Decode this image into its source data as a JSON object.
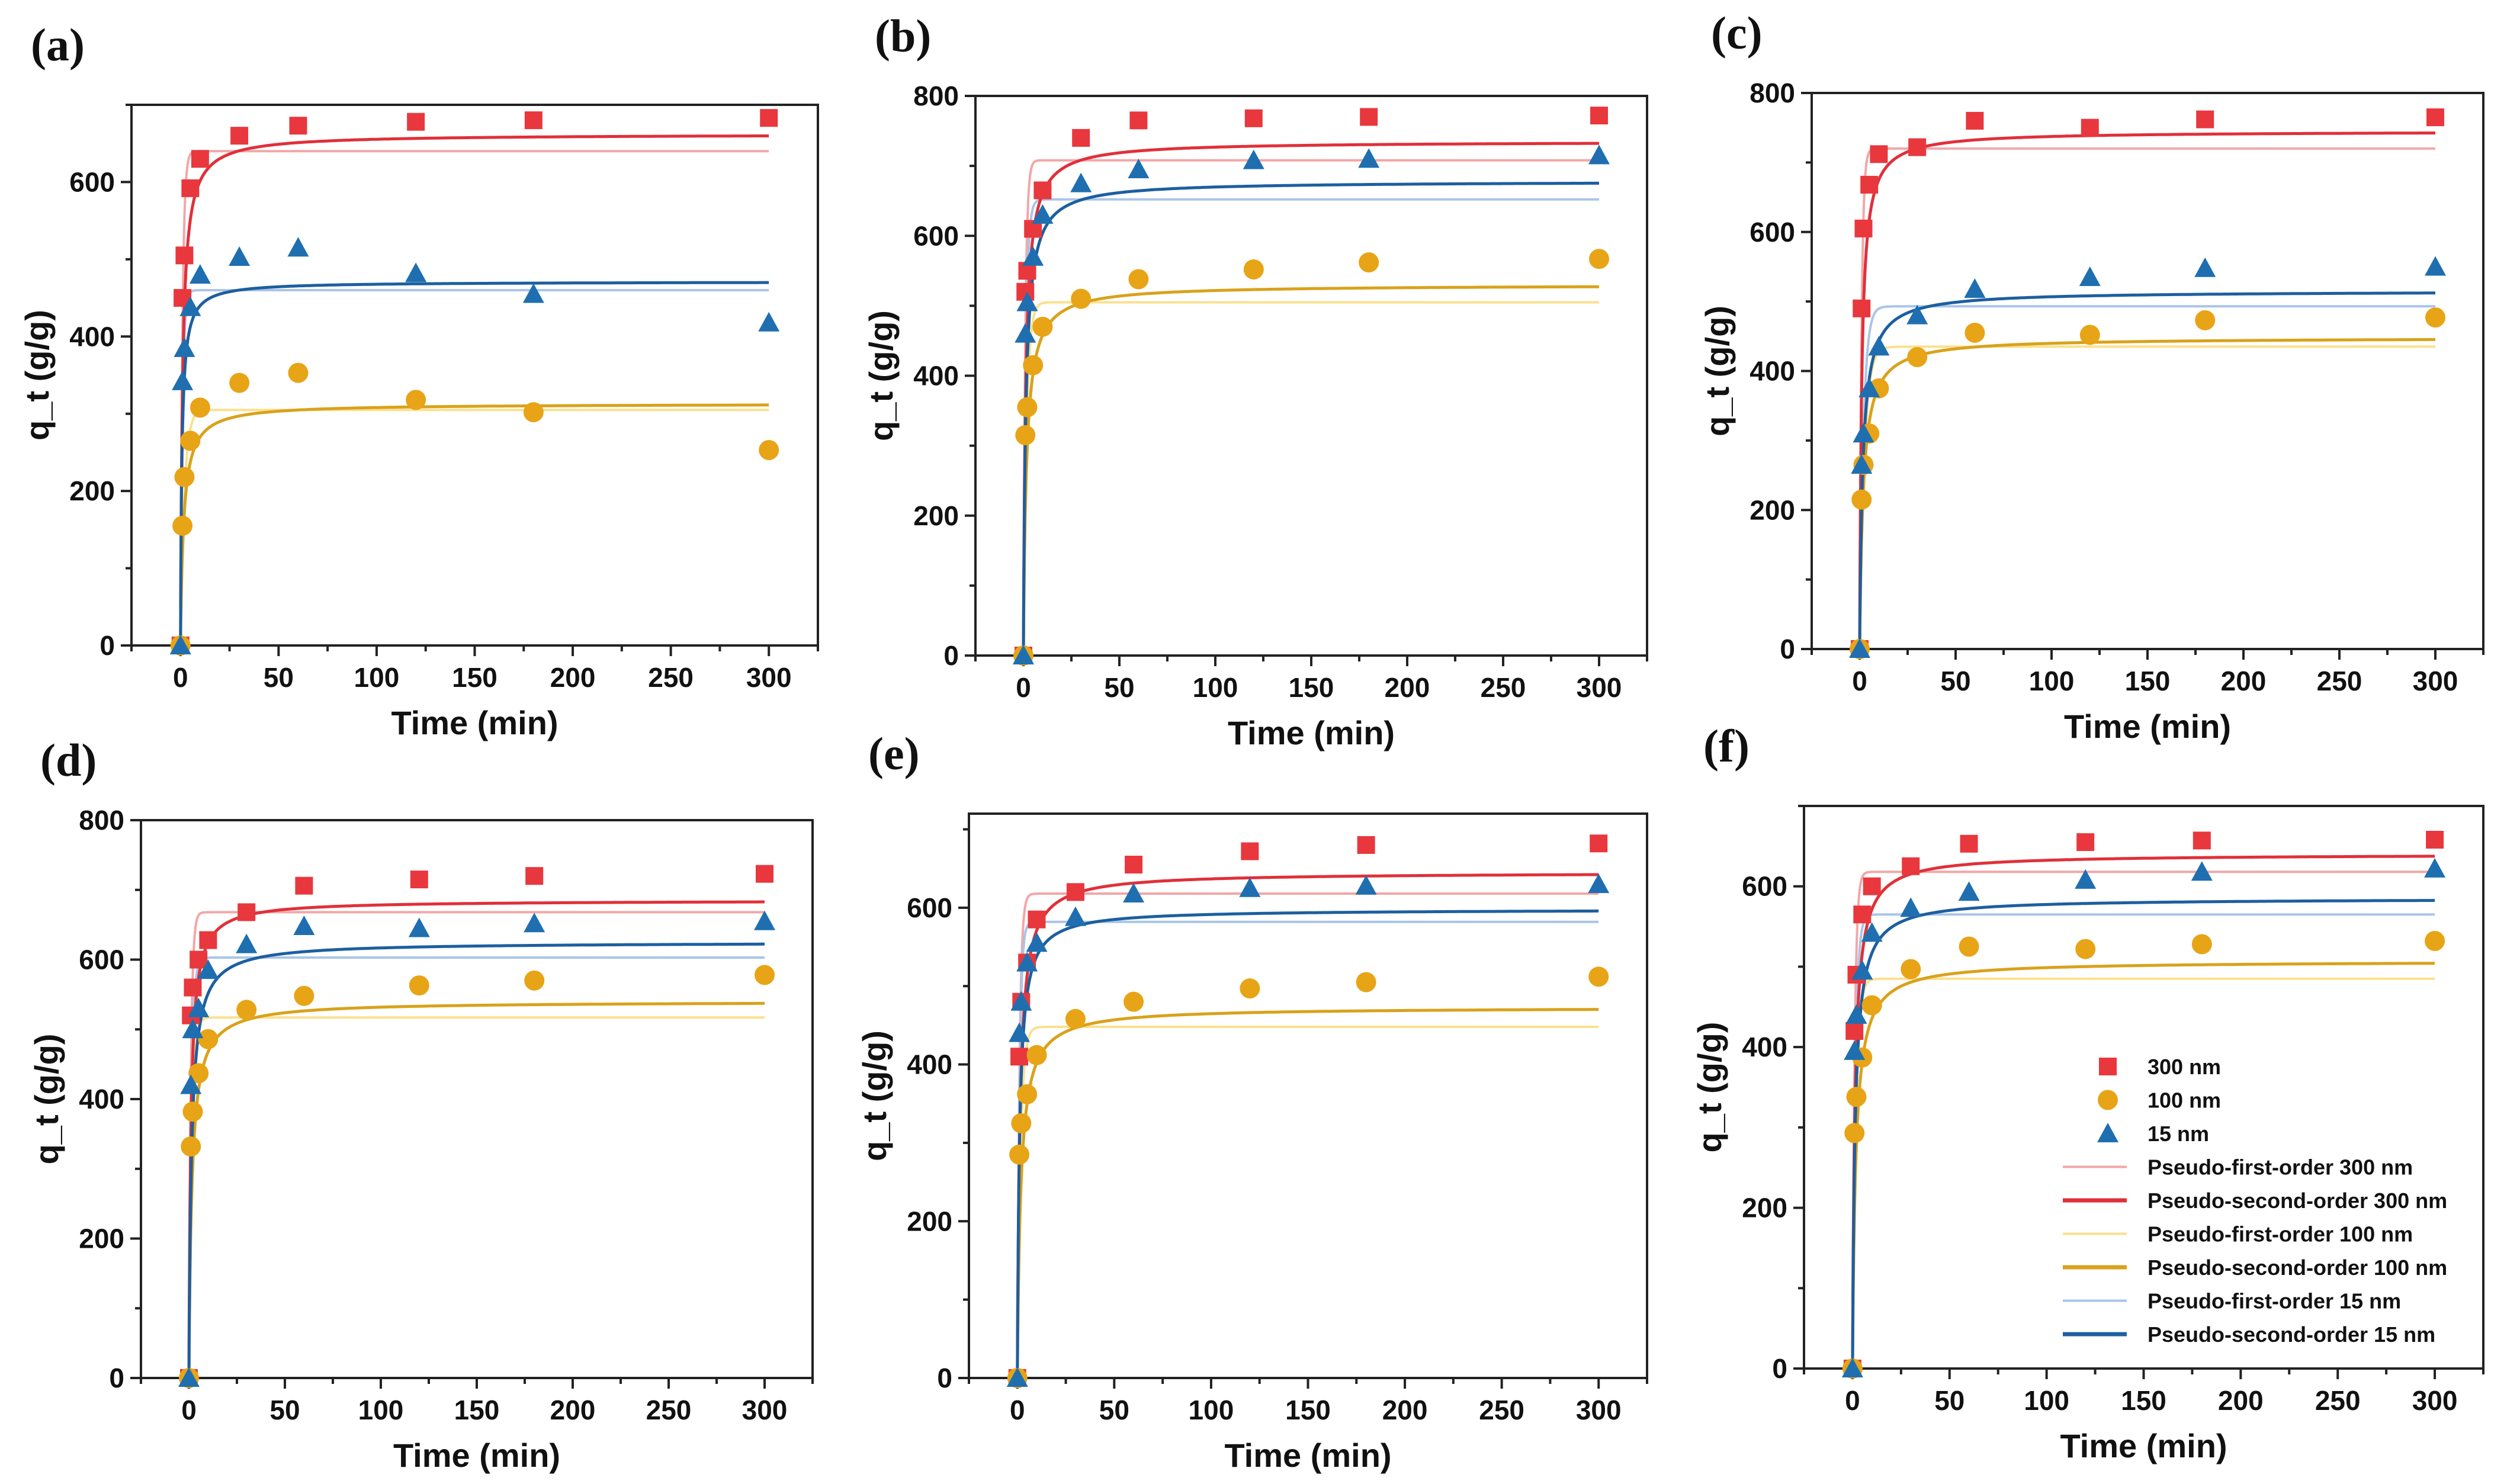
{
  "colors": {
    "s300": "#e8383d",
    "s100": "#e8a417",
    "s15": "#1f6fb0",
    "pfo300": "#f2a7a7",
    "pso300": "#e0303a",
    "pfo100": "#fbe08e",
    "pso100": "#d9a21b",
    "pfo15": "#a9c5e8",
    "pso15": "#1d5fa0"
  },
  "legend": {
    "entries": [
      {
        "key": "s300",
        "label": "300 nm",
        "kind": "square"
      },
      {
        "key": "s100",
        "label": "100 nm",
        "kind": "circle"
      },
      {
        "key": "s15",
        "label": "15 nm",
        "kind": "triangle"
      },
      {
        "key": "pfo300",
        "label": "Pseudo-first-order 300 nm",
        "kind": "thin"
      },
      {
        "key": "pso300",
        "label": "Pseudo-second-order 300 nm",
        "kind": "thick"
      },
      {
        "key": "pfo100",
        "label": "Pseudo-first-order 100 nm",
        "kind": "thin"
      },
      {
        "key": "pso100",
        "label": "Pseudo-second-order 100 nm",
        "kind": "thick"
      },
      {
        "key": "pfo15",
        "label": "Pseudo-first-order 15 nm",
        "kind": "thin"
      },
      {
        "key": "pso15",
        "label": "Pseudo-second-order 15 nm",
        "kind": "thick"
      }
    ]
  },
  "chart_data": [
    {
      "panel": "(a)",
      "type": "scatter",
      "xlabel": "Time (min)",
      "ylabel": "q_t (g/g)",
      "xlim": [
        -25,
        325
      ],
      "ylim": [
        0,
        700
      ],
      "xticks": [
        0,
        50,
        100,
        150,
        200,
        250,
        300
      ],
      "yticks": [
        0,
        200,
        400,
        600
      ],
      "x": [
        0,
        1,
        2,
        5,
        10,
        30,
        60,
        120,
        180,
        300
      ],
      "series": [
        {
          "name": "300 nm",
          "values": [
            0,
            450,
            505,
            592,
            630,
            660,
            673,
            678,
            680,
            683
          ]
        },
        {
          "name": "100 nm",
          "values": [
            0,
            155,
            218,
            265,
            308,
            340,
            353,
            318,
            302,
            253
          ]
        },
        {
          "name": "15 nm",
          "values": [
            0,
            342,
            385,
            438,
            480,
            503,
            515,
            482,
            455,
            418
          ]
        }
      ],
      "fits": {
        "pfo300": {
          "qe": 640,
          "k": 1.0
        },
        "pso300": {
          "qe": 662,
          "k": 0.0015
        },
        "pfo100": {
          "qe": 305,
          "k": 0.5
        },
        "pso100": {
          "qe": 313,
          "k": 0.002
        },
        "pfo15": {
          "qe": 460,
          "k": 1.0
        },
        "pso15": {
          "qe": 471,
          "k": 0.003
        }
      }
    },
    {
      "panel": "(b)",
      "type": "scatter",
      "xlabel": "Time (min)",
      "ylabel": "q_t (g/g)",
      "xlim": [
        -25,
        325
      ],
      "ylim": [
        0,
        800
      ],
      "xticks": [
        0,
        50,
        100,
        150,
        200,
        250,
        300
      ],
      "yticks": [
        0,
        200,
        400,
        600,
        800
      ],
      "x": [
        0,
        1,
        2,
        5,
        10,
        30,
        60,
        120,
        180,
        300
      ],
      "series": [
        {
          "name": "300 nm",
          "values": [
            0,
            520,
            550,
            610,
            665,
            740,
            765,
            768,
            770,
            772
          ]
        },
        {
          "name": "100 nm",
          "values": [
            0,
            315,
            355,
            415,
            470,
            510,
            538,
            552,
            562,
            567
          ]
        },
        {
          "name": "15 nm",
          "values": [
            0,
            460,
            505,
            570,
            630,
            675,
            695,
            708,
            710,
            715
          ]
        }
      ],
      "fits": {
        "pfo300": {
          "qe": 708,
          "k": 1.0
        },
        "pso300": {
          "qe": 735,
          "k": 0.0012
        },
        "pfo100": {
          "qe": 505,
          "k": 0.6
        },
        "pso100": {
          "qe": 530,
          "k": 0.0012
        },
        "pfo15": {
          "qe": 652,
          "k": 0.8
        },
        "pso15": {
          "qe": 678,
          "k": 0.0012
        }
      }
    },
    {
      "panel": "(c)",
      "type": "scatter",
      "xlabel": "Time (min)",
      "ylabel": "q_t (g/g)",
      "xlim": [
        -25,
        325
      ],
      "ylim": [
        0,
        800
      ],
      "xticks": [
        0,
        50,
        100,
        150,
        200,
        250,
        300
      ],
      "yticks": [
        0,
        200,
        400,
        600,
        800
      ],
      "x": [
        0,
        1,
        2,
        5,
        10,
        30,
        60,
        120,
        180,
        300
      ],
      "series": [
        {
          "name": "300 nm",
          "values": [
            0,
            490,
            605,
            668,
            712,
            722,
            760,
            750,
            762,
            765
          ]
        },
        {
          "name": "100 nm",
          "values": [
            0,
            215,
            265,
            310,
            375,
            420,
            455,
            452,
            473,
            477
          ]
        },
        {
          "name": "15 nm",
          "values": [
            0,
            265,
            310,
            375,
            435,
            480,
            518,
            535,
            548,
            550
          ]
        }
      ],
      "fits": {
        "pfo300": {
          "qe": 720,
          "k": 1.0
        },
        "pso300": {
          "qe": 745,
          "k": 0.0013
        },
        "pfo100": {
          "qe": 435,
          "k": 0.4
        },
        "pso100": {
          "qe": 448,
          "k": 0.0012
        },
        "pfo15": {
          "qe": 493,
          "k": 0.5
        },
        "pso15": {
          "qe": 515,
          "k": 0.0012
        }
      }
    },
    {
      "panel": "(d)",
      "type": "scatter",
      "xlabel": "Time (min)",
      "ylabel": "q_t (g/g)",
      "xlim": [
        -25,
        325
      ],
      "ylim": [
        0,
        800
      ],
      "xticks": [
        0,
        50,
        100,
        150,
        200,
        250,
        300
      ],
      "yticks": [
        0,
        200,
        400,
        600,
        800
      ],
      "x": [
        0,
        1,
        2,
        5,
        10,
        30,
        60,
        120,
        180,
        300
      ],
      "series": [
        {
          "name": "300 nm",
          "values": [
            0,
            520,
            560,
            600,
            628,
            668,
            706,
            715,
            720,
            723
          ]
        },
        {
          "name": "100 nm",
          "values": [
            0,
            332,
            382,
            437,
            486,
            528,
            548,
            563,
            570,
            578
          ]
        },
        {
          "name": "15 nm",
          "values": [
            0,
            420,
            500,
            530,
            585,
            622,
            648,
            645,
            652,
            655
          ]
        }
      ],
      "fits": {
        "pfo300": {
          "qe": 668,
          "k": 1.0
        },
        "pso300": {
          "qe": 685,
          "k": 0.0015
        },
        "pfo100": {
          "qe": 517,
          "k": 0.7
        },
        "pso100": {
          "qe": 540,
          "k": 0.0012
        },
        "pfo15": {
          "qe": 603,
          "k": 0.8
        },
        "pso15": {
          "qe": 625,
          "k": 0.0012
        }
      }
    },
    {
      "panel": "(e)",
      "type": "scatter",
      "xlabel": "Time (min)",
      "ylabel": "q_t (g/g)",
      "xlim": [
        -25,
        325
      ],
      "ylim": [
        0,
        720
      ],
      "xticks": [
        0,
        50,
        100,
        150,
        200,
        250,
        300
      ],
      "yticks": [
        0,
        200,
        400,
        600
      ],
      "x": [
        0,
        1,
        2,
        5,
        10,
        30,
        60,
        120,
        180,
        300
      ],
      "series": [
        {
          "name": "300 nm",
          "values": [
            0,
            410,
            480,
            530,
            585,
            620,
            655,
            672,
            680,
            682
          ]
        },
        {
          "name": "100 nm",
          "values": [
            0,
            285,
            325,
            362,
            412,
            458,
            480,
            497,
            505,
            512
          ]
        },
        {
          "name": "15 nm",
          "values": [
            0,
            440,
            480,
            530,
            555,
            588,
            618,
            625,
            628,
            630
          ]
        }
      ],
      "fits": {
        "pfo300": {
          "qe": 618,
          "k": 0.9
        },
        "pso300": {
          "qe": 645,
          "k": 0.0012
        },
        "pfo100": {
          "qe": 448,
          "k": 0.6
        },
        "pso100": {
          "qe": 473,
          "k": 0.0012
        },
        "pfo15": {
          "qe": 582,
          "k": 0.9
        },
        "pso15": {
          "qe": 598,
          "k": 0.0015
        }
      }
    },
    {
      "panel": "(f)",
      "type": "scatter",
      "xlabel": "Time (min)",
      "ylabel": "q_t (g/g)",
      "xlim": [
        -25,
        325
      ],
      "ylim": [
        0,
        700
      ],
      "xticks": [
        0,
        50,
        100,
        150,
        200,
        250,
        300
      ],
      "yticks": [
        0,
        200,
        400,
        600
      ],
      "x": [
        0,
        1,
        2,
        5,
        10,
        30,
        60,
        120,
        180,
        300
      ],
      "series": [
        {
          "name": "300 nm",
          "values": [
            0,
            420,
            490,
            565,
            600,
            625,
            653,
            655,
            657,
            658
          ]
        },
        {
          "name": "100 nm",
          "values": [
            0,
            293,
            338,
            387,
            452,
            497,
            525,
            522,
            528,
            532
          ]
        },
        {
          "name": "15 nm",
          "values": [
            0,
            395,
            440,
            495,
            542,
            573,
            593,
            608,
            618,
            622
          ]
        }
      ],
      "fits": {
        "pfo300": {
          "qe": 618,
          "k": 0.9
        },
        "pso300": {
          "qe": 640,
          "k": 0.0013
        },
        "pfo100": {
          "qe": 485,
          "k": 0.6
        },
        "pso100": {
          "qe": 507,
          "k": 0.0012
        },
        "pfo15": {
          "qe": 565,
          "k": 0.7
        },
        "pso15": {
          "qe": 585,
          "k": 0.0013
        }
      }
    }
  ]
}
